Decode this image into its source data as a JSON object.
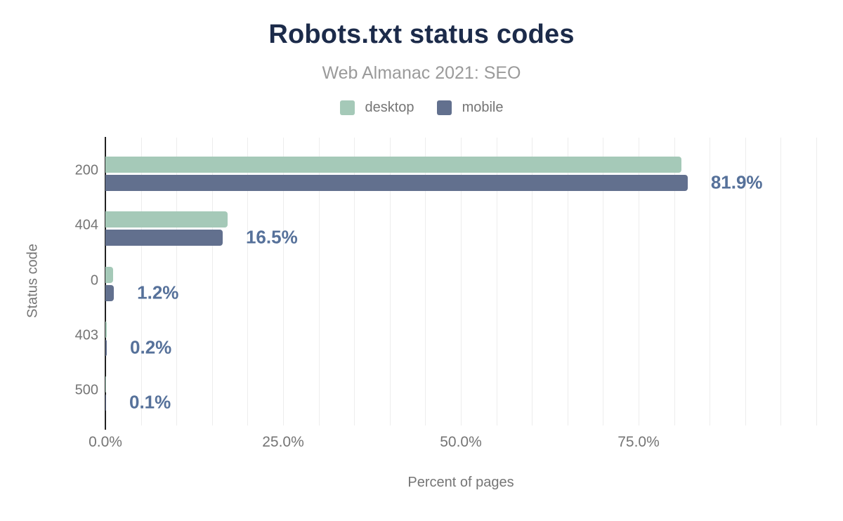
{
  "header": {
    "title": "Robots.txt status codes",
    "subtitle": "Web Almanac 2021: SEO"
  },
  "chart_data": {
    "type": "bar",
    "orientation": "horizontal",
    "title": "Robots.txt status codes",
    "subtitle": "Web Almanac 2021: SEO",
    "categories": [
      "200",
      "404",
      "0",
      "403",
      "500"
    ],
    "series": [
      {
        "name": "desktop",
        "color": "#a5c9b8",
        "values": [
          81.0,
          17.2,
          1.1,
          0.2,
          0.1
        ]
      },
      {
        "name": "mobile",
        "color": "#62708e",
        "values": [
          81.9,
          16.5,
          1.2,
          0.2,
          0.1
        ]
      }
    ],
    "bar_labels": [
      "81.9%",
      "16.5%",
      "1.2%",
      "0.2%",
      "0.1%"
    ],
    "bar_labels_series": "mobile",
    "xlabel": "Percent of pages",
    "ylabel": "Status code",
    "xlim": [
      0,
      100
    ],
    "x_tick_values": [
      0,
      25,
      50,
      75
    ],
    "x_tick_labels": [
      "0.0%",
      "25.0%",
      "50.0%",
      "75.0%"
    ],
    "gridline_step_percent": 5,
    "grid": "vertical",
    "legend_position": "top"
  },
  "colors": {
    "title": "#1c2b4a",
    "subtitle_text": "#9a9a9a",
    "axis_text": "#757575",
    "value_label": "#56719a",
    "desktop_bar": "#a5c9b8",
    "mobile_bar": "#62708e",
    "gridline": "#ededed",
    "axis_line": "#212121",
    "background": "#ffffff"
  }
}
